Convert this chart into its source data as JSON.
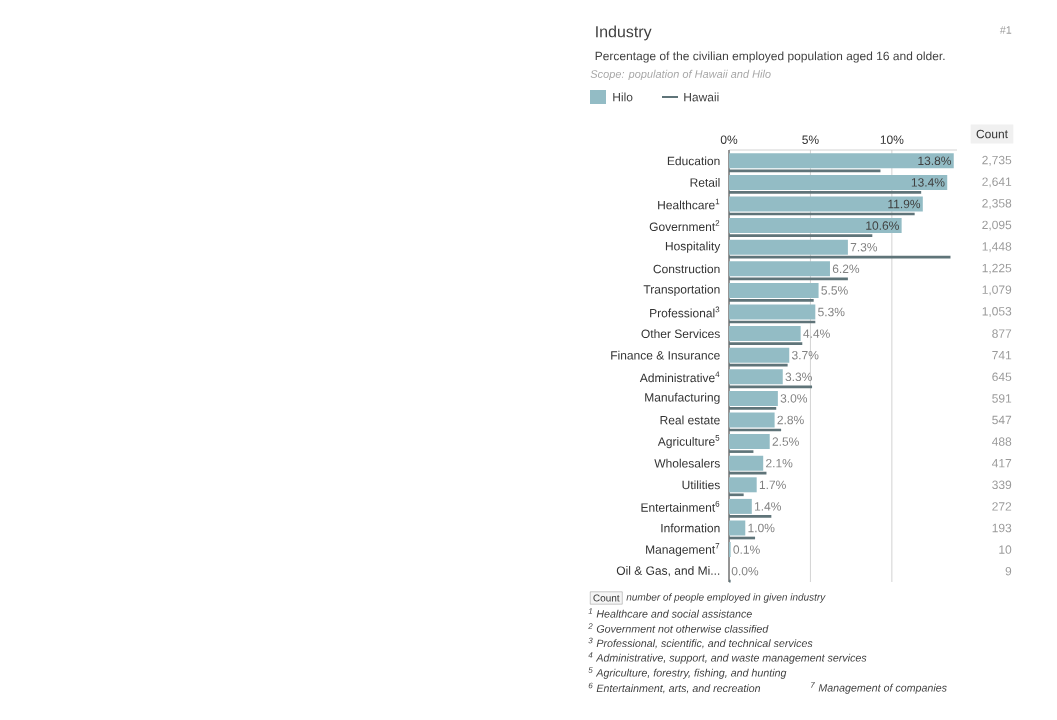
{
  "chart_data": {
    "type": "bar",
    "orientation": "horizontal",
    "title": "Industry",
    "subtitle": "Percentage of the civilian employed population aged 16 and older.",
    "categories": [
      "Education",
      "Retail",
      "Healthcare$^{1}$",
      "Government$^{2}$",
      "Hospitality",
      "Construction",
      "Transportation",
      "Professional$^{3}$",
      "Other Services",
      "Finance & Insurance",
      "Administrative$^{4}$",
      "Manufacturing",
      "Real estate",
      "Agriculture$^{5}$",
      "Wholesalers",
      "Utilities",
      "Entertainment$^{6}$",
      "Information",
      "Management$^{7}$",
      "Oil & Gas, and Mi..."
    ],
    "series": [
      {
        "name": "Hilo",
        "color": "#93bcc5",
        "values": [
          13.8,
          13.4,
          11.9,
          10.6,
          7.3,
          6.2,
          5.5,
          5.3,
          4.4,
          3.7,
          3.3,
          3.0,
          2.8,
          2.5,
          2.1,
          1.7,
          1.4,
          1.0,
          0.1,
          0.0
        ],
        "value_labels": [
          "13.8%",
          "13.4%",
          "11.9%",
          "10.6%",
          "7.3%",
          "6.2%",
          "5.5%",
          "5.3%",
          "4.4%",
          "3.7%",
          "3.3%",
          "3.0%",
          "2.8%",
          "2.5%",
          "2.1%",
          "1.7%",
          "1.4%",
          "1.0%",
          "0.1%",
          "0.0%"
        ]
      },
      {
        "name": "Hawaii",
        "color": "#5f7479",
        "values": [
          9.3,
          11.8,
          11.4,
          8.8,
          13.6,
          7.3,
          5.2,
          5.3,
          4.5,
          3.6,
          5.1,
          2.9,
          3.2,
          1.5,
          2.3,
          0.9,
          2.6,
          1.6,
          null,
          0.1
        ]
      }
    ],
    "xlim": [
      0,
      14
    ],
    "xticks": [
      {
        "value": 0,
        "label": "0%"
      },
      {
        "value": 5,
        "label": "5%"
      },
      {
        "value": 10,
        "label": "10%"
      }
    ],
    "grid": "x",
    "legend": "top left",
    "annotations": [
      "#1",
      "Scope: population of Hawaii and Hilo",
      "Count",
      "Count",
      "number of people employed in given industry",
      "$^{1}$ Healthcare and social assistance",
      "$^{2}$ Government not otherwise classified",
      "$^{3}$ Professional, scientific, and technical services",
      "$^{4}$ Administrative, support, and waste management services",
      "$^{5}$ Agriculture, forestry, fishing, and hunting",
      "$^{6}$ Entertainment, arts, and recreation",
      "$^{7}$ Management of companies",
      "2,735",
      "2,641",
      "2,358",
      "2,095",
      "1,448",
      "1,225",
      "1,079",
      "1,053",
      "877",
      "741",
      "645",
      "591",
      "547",
      "488",
      "417",
      "339",
      "272",
      "193",
      "10",
      "9"
    ]
  }
}
